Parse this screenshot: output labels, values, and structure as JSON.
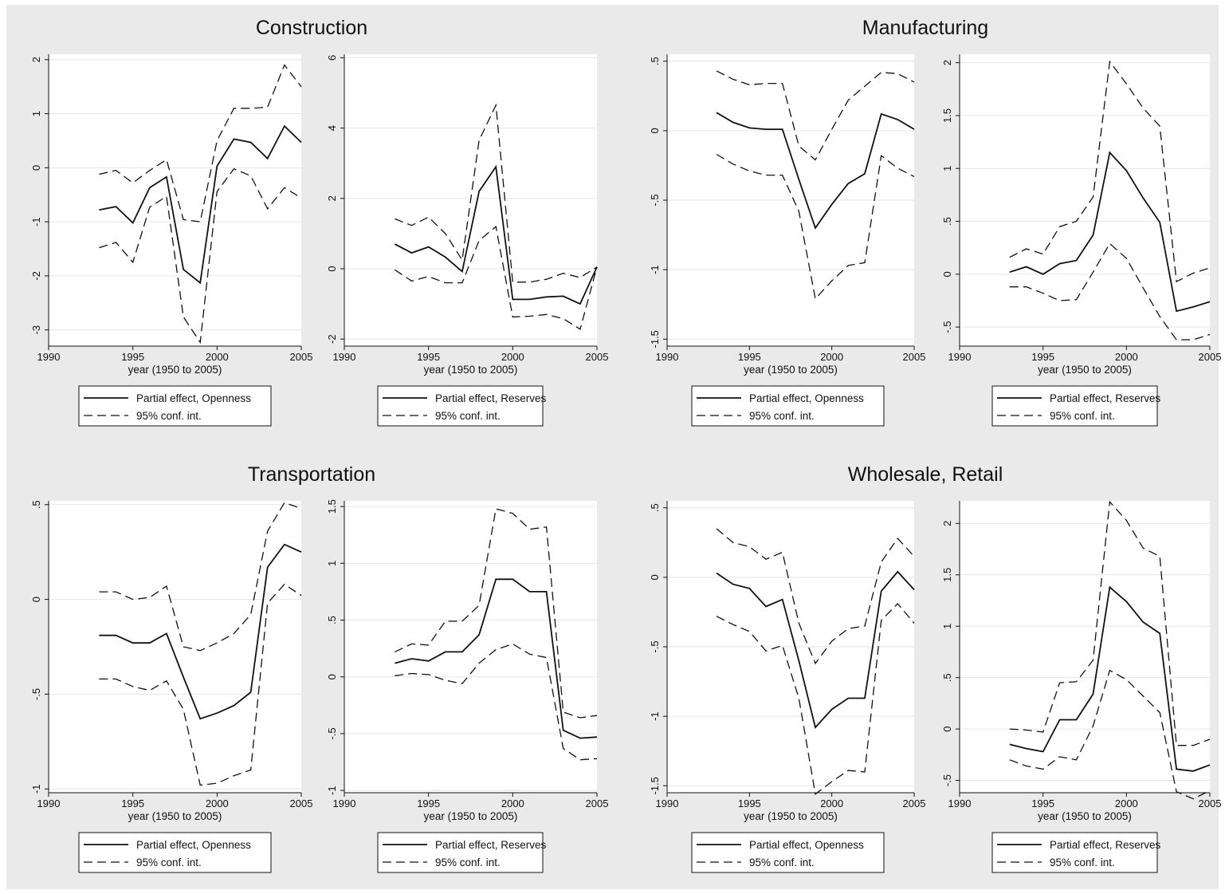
{
  "figure": {
    "background": "#eaeaea",
    "plot_background": "#ffffff",
    "grid_color": "#e6e6e6",
    "line_color": "#111111"
  },
  "chart_data": [
    {
      "type": "line",
      "group_title": "Construction",
      "xlabel": "year (1950 to 2005)",
      "xlim": [
        1990,
        2005
      ],
      "xticks": [
        1990,
        1995,
        2000,
        2005
      ],
      "ylim": [
        -3.3,
        2.1
      ],
      "yticks": [
        -3,
        -2,
        -1,
        0,
        1,
        2
      ],
      "ytick_labels": [
        "-3",
        "-2",
        "-1",
        "0",
        "1",
        "2"
      ],
      "grid": true,
      "x": [
        1993,
        1994,
        1995,
        1996,
        1997,
        1998,
        1999,
        2000,
        2001,
        2002,
        2003,
        2004,
        2005
      ],
      "series": [
        {
          "name": "Partial effect, Openness",
          "style": "solid",
          "values": [
            -0.78,
            -0.72,
            -1.02,
            -0.37,
            -0.17,
            -1.88,
            -2.13,
            0.03,
            0.53,
            0.47,
            0.17,
            0.77,
            0.47
          ]
        },
        {
          "name": "95% conf. int.",
          "style": "dashed",
          "values": [
            -0.12,
            -0.05,
            -0.28,
            -0.05,
            0.15,
            -0.96,
            -1.0,
            0.5,
            1.1,
            1.1,
            1.12,
            1.9,
            1.5
          ]
        },
        {
          "style": "dashed",
          "values": [
            -1.48,
            -1.38,
            -1.75,
            -0.73,
            -0.53,
            -2.76,
            -3.23,
            -0.44,
            -0.02,
            -0.15,
            -0.76,
            -0.37,
            -0.56
          ]
        }
      ],
      "legend": {
        "position": "bottom",
        "entries": [
          "Partial effect, Openness",
          "95% conf. int."
        ]
      }
    },
    {
      "type": "line",
      "xlabel": "year (1950 to 2005)",
      "xlim": [
        1990,
        2005
      ],
      "xticks": [
        1990,
        1995,
        2000,
        2005
      ],
      "ylim": [
        -2.2,
        6.1
      ],
      "yticks": [
        -2,
        0,
        2,
        4,
        6
      ],
      "ytick_labels": [
        "-2",
        "0",
        "2",
        "4",
        "6"
      ],
      "grid": true,
      "x": [
        1993,
        1994,
        1995,
        1996,
        1997,
        1998,
        1999,
        2000,
        2001,
        2002,
        2003,
        2004,
        2005
      ],
      "series": [
        {
          "name": "Partial effect, Reserves",
          "style": "solid",
          "values": [
            0.7,
            0.45,
            0.62,
            0.33,
            -0.08,
            2.2,
            2.9,
            -0.87,
            -0.87,
            -0.8,
            -0.78,
            -1.0,
            0.05
          ]
        },
        {
          "name": "95% conf. int.",
          "style": "dashed",
          "values": [
            1.42,
            1.23,
            1.47,
            1.0,
            0.25,
            3.65,
            4.65,
            -0.38,
            -0.38,
            -0.3,
            -0.13,
            -0.25,
            0.05
          ]
        },
        {
          "style": "dashed",
          "values": [
            -0.03,
            -0.35,
            -0.22,
            -0.4,
            -0.4,
            0.8,
            1.2,
            -1.37,
            -1.35,
            -1.3,
            -1.42,
            -1.72,
            0.05
          ]
        }
      ],
      "legend": {
        "position": "bottom",
        "entries": [
          "Partial effect, Reserves",
          "95% conf. int."
        ]
      }
    },
    {
      "type": "line",
      "group_title": "Manufacturing",
      "xlabel": "year (1950 to 2005)",
      "xlim": [
        1990,
        2005
      ],
      "xticks": [
        1990,
        1995,
        2000,
        2005
      ],
      "ylim": [
        -1.55,
        0.55
      ],
      "yticks": [
        -1.5,
        -1,
        -0.5,
        0,
        0.5
      ],
      "ytick_labels": [
        "-1.5",
        "-1",
        "-.5",
        "0",
        ".5"
      ],
      "grid": true,
      "x": [
        1993,
        1994,
        1995,
        1996,
        1997,
        1998,
        1999,
        2000,
        2001,
        2002,
        2003,
        2004,
        2005
      ],
      "series": [
        {
          "name": "Partial effect, Openness",
          "style": "solid",
          "values": [
            0.13,
            0.06,
            0.02,
            0.01,
            0.01,
            -0.35,
            -0.7,
            -0.53,
            -0.38,
            -0.31,
            0.12,
            0.08,
            0.01
          ]
        },
        {
          "name": "95% conf. int.",
          "style": "dashed",
          "values": [
            0.43,
            0.37,
            0.33,
            0.34,
            0.34,
            -0.11,
            -0.21,
            0.01,
            0.22,
            0.32,
            0.42,
            0.41,
            0.35
          ]
        },
        {
          "style": "dashed",
          "values": [
            -0.17,
            -0.24,
            -0.29,
            -0.32,
            -0.32,
            -0.58,
            -1.21,
            -1.08,
            -0.97,
            -0.95,
            -0.18,
            -0.27,
            -0.33
          ]
        }
      ],
      "legend": {
        "position": "bottom",
        "entries": [
          "Partial effect, Openness",
          "95% conf. int."
        ]
      }
    },
    {
      "type": "line",
      "xlabel": "year (1950 to 2005)",
      "xlim": [
        1990,
        2005
      ],
      "xticks": [
        1990,
        1995,
        2000,
        2005
      ],
      "ylim": [
        -0.68,
        2.08
      ],
      "yticks": [
        -0.5,
        0,
        0.5,
        1,
        1.5,
        2
      ],
      "ytick_labels": [
        "-.5",
        "0",
        ".5",
        "1",
        "1.5",
        "2"
      ],
      "grid": true,
      "x": [
        1993,
        1994,
        1995,
        1996,
        1997,
        1998,
        1999,
        2000,
        2001,
        2002,
        2003,
        2004,
        2005
      ],
      "series": [
        {
          "name": "Partial effect, Reserves",
          "style": "solid",
          "values": [
            0.02,
            0.07,
            0.0,
            0.1,
            0.13,
            0.37,
            1.15,
            0.98,
            0.72,
            0.49,
            -0.35,
            -0.31,
            -0.26
          ]
        },
        {
          "name": "95% conf. int.",
          "style": "dashed",
          "values": [
            0.16,
            0.24,
            0.19,
            0.45,
            0.5,
            0.73,
            2.01,
            1.8,
            1.57,
            1.4,
            -0.07,
            0.01,
            0.06
          ]
        },
        {
          "style": "dashed",
          "values": [
            -0.12,
            -0.12,
            -0.18,
            -0.25,
            -0.24,
            0.02,
            0.29,
            0.15,
            -0.13,
            -0.4,
            -0.62,
            -0.62,
            -0.57
          ]
        }
      ],
      "legend": {
        "position": "bottom",
        "entries": [
          "Partial effect, Reserves",
          "95% conf. int."
        ]
      }
    },
    {
      "type": "line",
      "group_title": "Transportation",
      "xlabel": "year (1950 to 2005)",
      "xlim": [
        1990,
        2005
      ],
      "xticks": [
        1990,
        1995,
        2000,
        2005
      ],
      "ylim": [
        -1.02,
        0.52
      ],
      "yticks": [
        -1,
        -0.5,
        0,
        0.5
      ],
      "ytick_labels": [
        "-1",
        "-.5",
        "0",
        ".5"
      ],
      "grid": true,
      "x": [
        1993,
        1994,
        1995,
        1996,
        1997,
        1998,
        1999,
        2000,
        2001,
        2002,
        2003,
        2004,
        2005
      ],
      "series": [
        {
          "name": "Partial effect, Openness",
          "style": "solid",
          "values": [
            -0.19,
            -0.19,
            -0.23,
            -0.23,
            -0.18,
            -0.41,
            -0.63,
            -0.6,
            -0.56,
            -0.49,
            0.17,
            0.29,
            0.25
          ]
        },
        {
          "name": "95% conf. int.",
          "style": "dashed",
          "values": [
            0.04,
            0.04,
            0.0,
            0.01,
            0.07,
            -0.25,
            -0.27,
            -0.23,
            -0.18,
            -0.08,
            0.36,
            0.51,
            0.48
          ]
        },
        {
          "style": "dashed",
          "values": [
            -0.42,
            -0.42,
            -0.46,
            -0.48,
            -0.43,
            -0.58,
            -0.98,
            -0.97,
            -0.93,
            -0.9,
            -0.02,
            0.08,
            0.02
          ]
        }
      ],
      "legend": {
        "position": "bottom",
        "entries": [
          "Partial effect, Openness",
          "95% conf. int."
        ]
      }
    },
    {
      "type": "line",
      "xlabel": "year (1950 to 2005)",
      "xlim": [
        1990,
        2005
      ],
      "xticks": [
        1990,
        1995,
        2000,
        2005
      ],
      "ylim": [
        -1.02,
        1.55
      ],
      "yticks": [
        -1,
        -0.5,
        0,
        0.5,
        1,
        1.5
      ],
      "ytick_labels": [
        "-1",
        "-.5",
        "0",
        ".5",
        "1",
        "1.5"
      ],
      "grid": true,
      "x": [
        1993,
        1994,
        1995,
        1996,
        1997,
        1998,
        1999,
        2000,
        2001,
        2002,
        2003,
        2004,
        2005
      ],
      "series": [
        {
          "name": "Partial effect, Reserves",
          "style": "solid",
          "values": [
            0.12,
            0.16,
            0.14,
            0.22,
            0.22,
            0.37,
            0.86,
            0.86,
            0.75,
            0.75,
            -0.47,
            -0.54,
            -0.53
          ]
        },
        {
          "name": "95% conf. int.",
          "style": "dashed",
          "values": [
            0.22,
            0.29,
            0.28,
            0.49,
            0.49,
            0.63,
            1.48,
            1.44,
            1.3,
            1.32,
            -0.31,
            -0.36,
            -0.34
          ]
        },
        {
          "style": "dashed",
          "values": [
            0.01,
            0.03,
            0.02,
            -0.03,
            -0.06,
            0.12,
            0.24,
            0.29,
            0.2,
            0.17,
            -0.63,
            -0.73,
            -0.72
          ]
        }
      ],
      "legend": {
        "position": "bottom",
        "entries": [
          "Partial effect, Reserves",
          "95% conf. int."
        ]
      }
    },
    {
      "type": "line",
      "group_title": "Wholesale, Retail",
      "xlabel": "year (1950 to 2005)",
      "xlim": [
        1990,
        2005
      ],
      "xticks": [
        1990,
        1995,
        2000,
        2005
      ],
      "ylim": [
        -1.55,
        0.55
      ],
      "yticks": [
        -1.5,
        -1,
        -0.5,
        0,
        0.5
      ],
      "ytick_labels": [
        "-1.5",
        "-1",
        "-.5",
        "0",
        ".5"
      ],
      "grid": true,
      "x": [
        1993,
        1994,
        1995,
        1996,
        1997,
        1998,
        1999,
        2000,
        2001,
        2002,
        2003,
        2004,
        2005
      ],
      "series": [
        {
          "name": "Partial effect, Openness",
          "style": "solid",
          "values": [
            0.03,
            -0.05,
            -0.08,
            -0.21,
            -0.16,
            -0.6,
            -1.08,
            -0.95,
            -0.87,
            -0.87,
            -0.1,
            0.04,
            -0.09
          ]
        },
        {
          "name": "95% conf. int.",
          "style": "dashed",
          "values": [
            0.35,
            0.25,
            0.22,
            0.13,
            0.18,
            -0.33,
            -0.62,
            -0.46,
            -0.37,
            -0.35,
            0.11,
            0.28,
            0.15
          ]
        },
        {
          "style": "dashed",
          "values": [
            -0.28,
            -0.34,
            -0.39,
            -0.53,
            -0.49,
            -0.87,
            -1.56,
            -1.47,
            -1.39,
            -1.4,
            -0.31,
            -0.19,
            -0.33
          ]
        }
      ],
      "legend": {
        "position": "bottom",
        "entries": [
          "Partial effect, Openness",
          "95% conf. int."
        ]
      }
    },
    {
      "type": "line",
      "xlabel": "year (1950 to 2005)",
      "xlim": [
        1990,
        2005
      ],
      "xticks": [
        1990,
        1995,
        2000,
        2005
      ],
      "ylim": [
        -0.62,
        2.22
      ],
      "yticks": [
        -0.5,
        0,
        0.5,
        1,
        1.5,
        2
      ],
      "ytick_labels": [
        "-.5",
        "0",
        ".5",
        "1",
        "1.5",
        "2"
      ],
      "grid": true,
      "x": [
        1993,
        1994,
        1995,
        1996,
        1997,
        1998,
        1999,
        2000,
        2001,
        2002,
        2003,
        2004,
        2005
      ],
      "series": [
        {
          "name": "Partial effect, Reserves",
          "style": "solid",
          "values": [
            -0.15,
            -0.19,
            -0.22,
            0.09,
            0.09,
            0.34,
            1.38,
            1.24,
            1.04,
            0.93,
            -0.39,
            -0.41,
            -0.35
          ]
        },
        {
          "name": "95% conf. int.",
          "style": "dashed",
          "values": [
            0.0,
            -0.01,
            -0.03,
            0.45,
            0.46,
            0.67,
            2.21,
            2.03,
            1.76,
            1.68,
            -0.16,
            -0.16,
            -0.1
          ]
        },
        {
          "style": "dashed",
          "values": [
            -0.3,
            -0.36,
            -0.39,
            -0.27,
            -0.3,
            0.03,
            0.57,
            0.48,
            0.32,
            0.16,
            -0.61,
            -0.68,
            -0.6
          ]
        }
      ],
      "legend": {
        "position": "bottom",
        "entries": [
          "Partial effect, Reserves",
          "95% conf. int."
        ]
      }
    }
  ]
}
